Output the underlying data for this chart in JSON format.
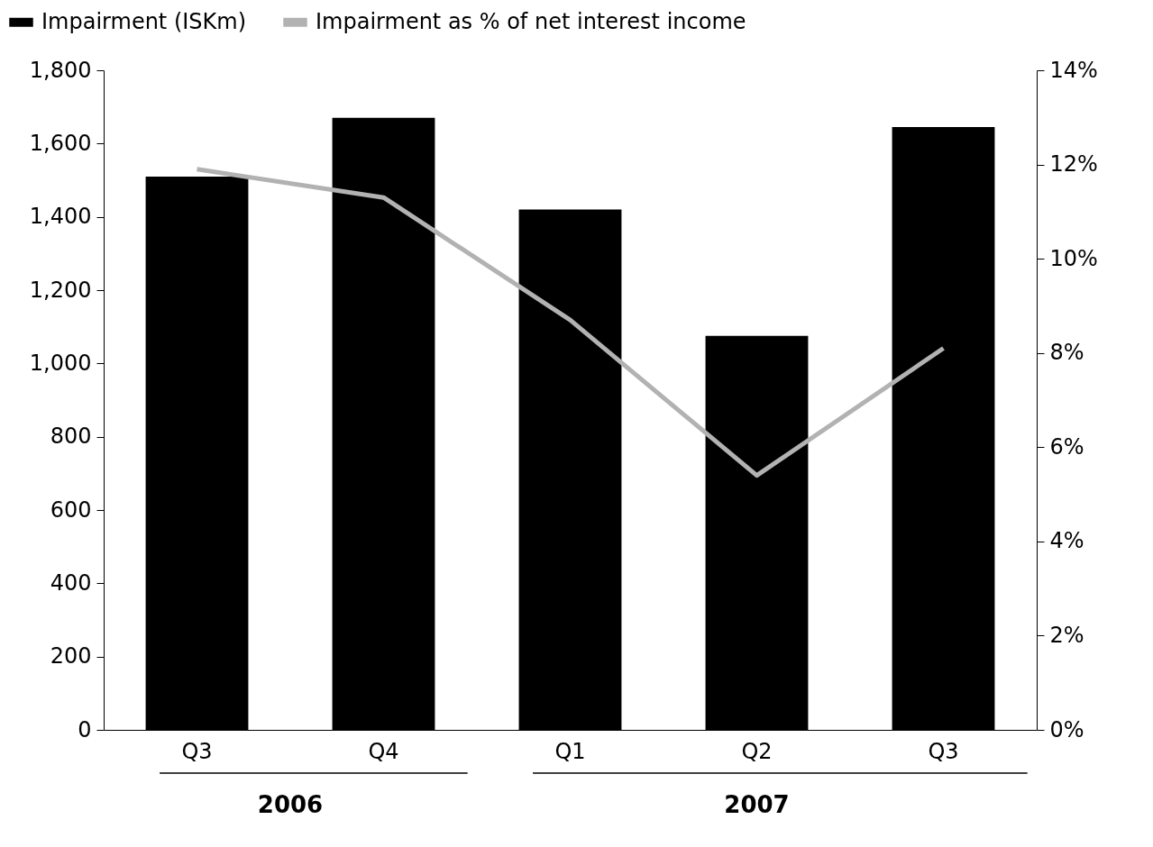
{
  "chart_data": {
    "type": "bar",
    "categories": [
      "Q3",
      "Q4",
      "Q1",
      "Q2",
      "Q3"
    ],
    "annotations": [
      "2006",
      "2007"
    ],
    "series": [
      {
        "name": "Impairment (ISKm)",
        "color": "#000000",
        "values": [
          1510,
          1670,
          1420,
          1075,
          1645
        ]
      },
      {
        "name": "Impairment as % of net interest income",
        "type": "line",
        "axis": "y2",
        "color": "#b2b2b2",
        "values": [
          11.9,
          11.3,
          8.7,
          5.4,
          8.1
        ]
      }
    ],
    "ylim": [
      0,
      1800
    ],
    "yticks": [
      0,
      200,
      400,
      600,
      800,
      {
        "value": 1000,
        "label": "1,000"
      },
      {
        "value": 1200,
        "label": "1,200"
      },
      {
        "value": 1400,
        "label": "1,400"
      },
      {
        "value": 1600,
        "label": "1,600"
      },
      {
        "value": 1800,
        "label": "1,800"
      }
    ],
    "y2lim": [
      0,
      14
    ],
    "y2ticks": [
      {
        "value": 0,
        "label": "0%"
      },
      {
        "value": 2,
        "label": "2%"
      },
      {
        "value": 4,
        "label": "4%"
      },
      {
        "value": 6,
        "label": "6%"
      },
      {
        "value": 8,
        "label": "8%"
      },
      {
        "value": 10,
        "label": "10%"
      },
      {
        "value": 12,
        "label": "12%"
      },
      {
        "value": 14,
        "label": "14%"
      }
    ],
    "legend": "top",
    "grid": false
  }
}
